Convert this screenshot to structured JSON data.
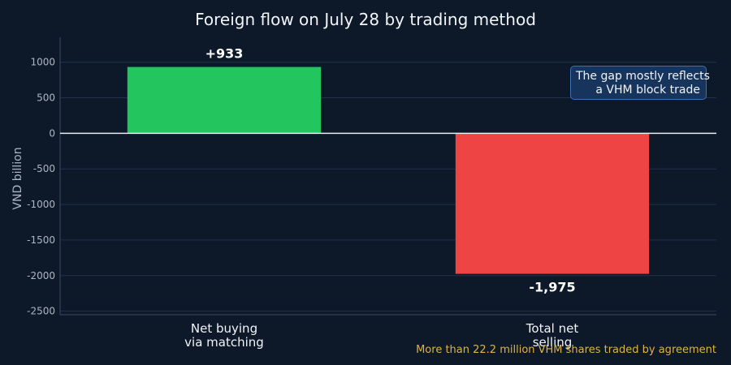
{
  "chart_data": {
    "type": "bar",
    "title": "Foreign flow on July 28 by trading method",
    "ylabel": "VND billion",
    "xlabel": "",
    "categories": [
      [
        "Net buying",
        "via matching"
      ],
      [
        "Total net",
        "selling"
      ]
    ],
    "values": [
      933,
      -1975
    ],
    "value_labels": [
      "+933",
      "-1,975"
    ],
    "bar_colors": [
      "#22c55e",
      "#ef4444"
    ],
    "ylim": [
      -2550,
      1350
    ],
    "yticks": [
      1000,
      500,
      0,
      -500,
      -1000,
      -1500,
      -2000,
      -2500
    ],
    "ytick_labels": [
      "1000",
      "500",
      "0",
      "-500",
      "-1000",
      "-1500",
      "-2000",
      "-2500"
    ],
    "grid": true,
    "annotation": [
      "The gap mostly reflects",
      "a VHM block trade"
    ],
    "footnote": "More than 22.2 million VHM shares traded by agreement"
  }
}
